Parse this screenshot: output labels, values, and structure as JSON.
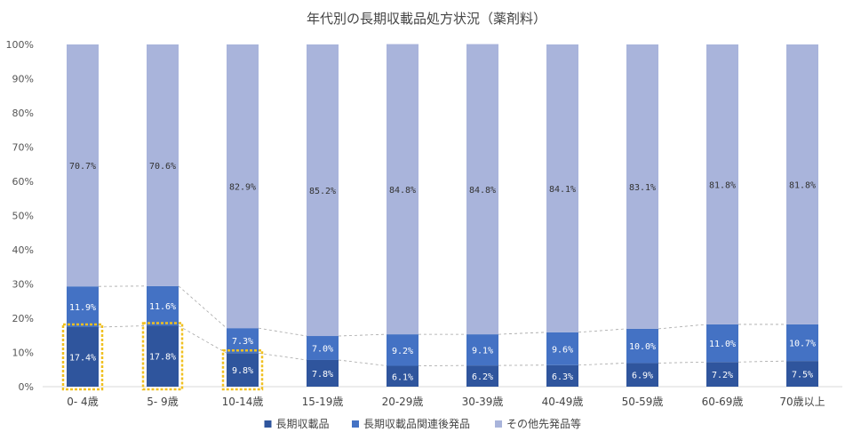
{
  "chart_data": {
    "type": "bar",
    "stacked": true,
    "percent": true,
    "title": "年代別の長期収載品処方状況（薬剤料）",
    "categories": [
      "0- 4歳",
      "5- 9歳",
      "10-14歳",
      "15-19歳",
      "20-29歳",
      "30-39歳",
      "40-49歳",
      "50-59歳",
      "60-69歳",
      "70歳以上"
    ],
    "series": [
      {
        "name": "長期収載品",
        "color": "#2f559d",
        "values": [
          17.4,
          17.8,
          9.8,
          7.8,
          6.1,
          6.2,
          6.3,
          6.9,
          7.2,
          7.5
        ],
        "labels": [
          "17.4%",
          "17.8%",
          "9.8%",
          "7.8%",
          "6.1%",
          "6.2%",
          "6.3%",
          "6.9%",
          "7.2%",
          "7.5%"
        ]
      },
      {
        "name": "長期収載品関連後発品",
        "color": "#4472c4",
        "values": [
          11.9,
          11.6,
          7.3,
          7.0,
          9.2,
          9.1,
          9.6,
          10.0,
          11.0,
          10.7
        ],
        "labels": [
          "11.9%",
          "11.6%",
          "7.3%",
          "7.0%",
          "9.2%",
          "9.1%",
          "9.6%",
          "10.0%",
          "11.0%",
          "10.7%"
        ]
      },
      {
        "name": "その他先発品等",
        "color": "#a9b4db",
        "values": [
          70.7,
          70.6,
          82.9,
          85.2,
          84.8,
          84.8,
          84.1,
          83.1,
          81.8,
          81.8
        ],
        "labels": [
          "70.7%",
          "70.6%",
          "82.9%",
          "85.2%",
          "84.8%",
          "84.8%",
          "84.1%",
          "83.1%",
          "81.8%",
          "81.8%"
        ]
      }
    ],
    "yticks": [
      "0%",
      "10%",
      "20%",
      "30%",
      "40%",
      "50%",
      "60%",
      "70%",
      "80%",
      "90%",
      "100%"
    ],
    "ylim": [
      0,
      100
    ],
    "grid": false,
    "series_lines": "dashed",
    "highlight_color": "#f0c020",
    "highlighted_categories": [
      "0- 4歳",
      "5- 9歳",
      "10-14歳"
    ],
    "legend_position": "bottom"
  }
}
